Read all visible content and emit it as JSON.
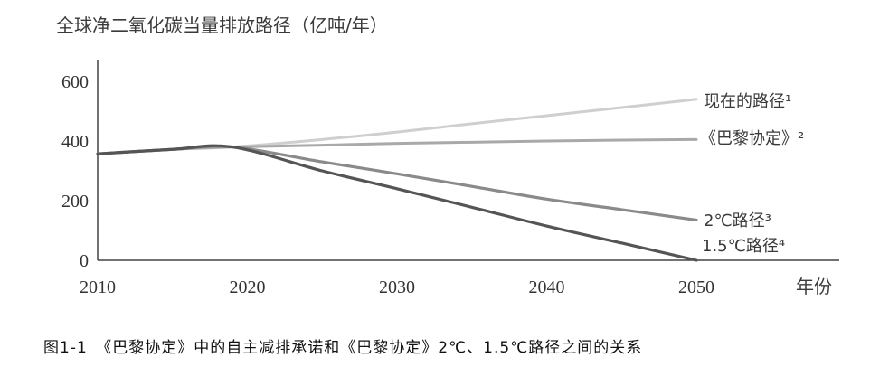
{
  "chart_title": "全球净二氧化碳当量排放路径（亿吨/年）",
  "caption": "图1-1　《巴黎协定》中的自主减排承诺和《巴黎协定》2℃、1.5℃路径之间的关系",
  "axis": {
    "x_label": "年份",
    "x_ticks": [
      "2010",
      "2020",
      "2030",
      "2040",
      "2050"
    ],
    "y_ticks": [
      "0",
      "200",
      "400",
      "600"
    ]
  },
  "legend": {
    "current": "现在的路径¹",
    "paris": "《巴黎协定》²",
    "two_deg": "2℃路径³",
    "one_five_deg": "1.5℃路径⁴"
  },
  "colors": {
    "current": "#cfcfcf",
    "paris": "#a9a9a9",
    "two_deg": "#8a8a8a",
    "one_five_deg": "#555555",
    "axis": "#444444"
  },
  "chart_data": {
    "type": "line",
    "title": "全球净二氧化碳当量排放路径（亿吨/年）",
    "xlabel": "年份",
    "ylabel": "亿吨/年",
    "xlim": [
      2010,
      2050
    ],
    "ylim": [
      0,
      600
    ],
    "x": [
      2010,
      2015,
      2019,
      2025,
      2030,
      2035,
      2040,
      2045,
      2050
    ],
    "series": [
      {
        "name": "现在的路径",
        "values": [
          357,
          372,
          380,
          405,
          430,
          458,
          485,
          512,
          540
        ]
      },
      {
        "name": "《巴黎协定》",
        "values": [
          357,
          372,
          380,
          386,
          392,
          396,
          400,
          403,
          405
        ]
      },
      {
        "name": "2℃路径",
        "values": [
          357,
          372,
          380,
          330,
          290,
          248,
          205,
          170,
          135
        ]
      },
      {
        "name": "1.5℃路径",
        "values": [
          357,
          372,
          380,
          300,
          240,
          178,
          115,
          58,
          0
        ]
      }
    ],
    "grid": false,
    "legend_position": "inline-right"
  }
}
